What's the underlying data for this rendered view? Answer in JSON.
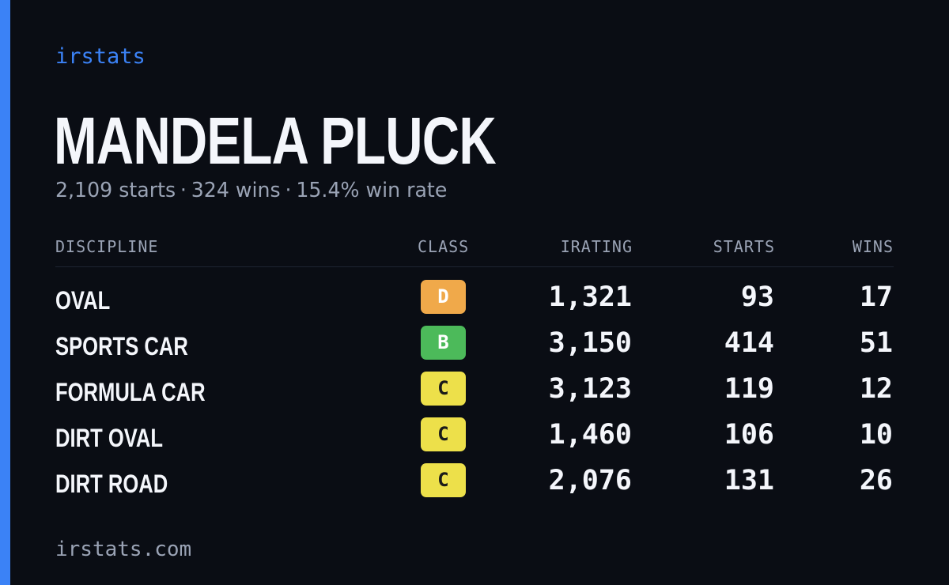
{
  "brand": "irstats",
  "driver": {
    "name": "MANDELA PLUCK",
    "starts": "2,109 starts",
    "wins": "324 wins",
    "win_rate": "15.4% win rate",
    "separator": "·"
  },
  "table": {
    "headers": {
      "discipline": "DISCIPLINE",
      "class": "CLASS",
      "irating": "IRATING",
      "starts": "STARTS",
      "wins": "WINS"
    },
    "rows": [
      {
        "discipline": "OVAL",
        "class": "D",
        "class_color": "#f0a94a",
        "class_text_color": "#ffffff",
        "irating": "1,321",
        "starts": "93",
        "wins": "17"
      },
      {
        "discipline": "SPORTS CAR",
        "class": "B",
        "class_color": "#4cba5a",
        "class_text_color": "#ffffff",
        "irating": "3,150",
        "starts": "414",
        "wins": "51"
      },
      {
        "discipline": "FORMULA CAR",
        "class": "C",
        "class_color": "#ede04a",
        "class_text_color": "#1a1a1a",
        "irating": "3,123",
        "starts": "119",
        "wins": "12"
      },
      {
        "discipline": "DIRT OVAL",
        "class": "C",
        "class_color": "#ede04a",
        "class_text_color": "#1a1a1a",
        "irating": "1,460",
        "starts": "106",
        "wins": "10"
      },
      {
        "discipline": "DIRT ROAD",
        "class": "C",
        "class_color": "#ede04a",
        "class_text_color": "#1a1a1a",
        "irating": "2,076",
        "starts": "131",
        "wins": "26"
      }
    ]
  },
  "footer": "irstats.com",
  "colors": {
    "background": "#0a0d14",
    "accent": "#3b82f6",
    "text": "#f4f6fb",
    "muted": "#9aa3b5"
  }
}
